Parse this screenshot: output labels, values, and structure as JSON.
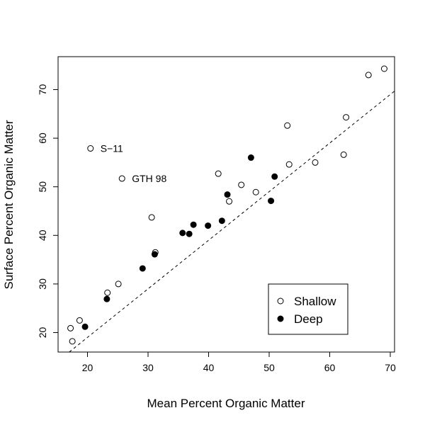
{
  "chart_data": {
    "type": "scatter",
    "xlabel": "Mean Percent Organic Matter",
    "ylabel": "Surface Percent Organic Matter",
    "xlim": [
      15,
      71
    ],
    "ylim": [
      16,
      77
    ],
    "x_ticks": [
      20,
      30,
      40,
      50,
      60,
      70
    ],
    "y_ticks": [
      20,
      30,
      40,
      50,
      60,
      70
    ],
    "legend_position": "bottom-right",
    "reference_line": {
      "style": "dashed",
      "intercept": -1,
      "slope": 1
    },
    "series": [
      {
        "name": "Shallow",
        "marker": "open-circle",
        "points": [
          [
            17.2,
            20.9
          ],
          [
            17.5,
            18.2
          ],
          [
            18.7,
            22.5
          ],
          [
            20.5,
            57.9
          ],
          [
            23.3,
            28.2
          ],
          [
            25.1,
            30.0
          ],
          [
            25.7,
            51.7
          ],
          [
            30.6,
            43.7
          ],
          [
            31.2,
            36.5
          ],
          [
            41.6,
            52.7
          ],
          [
            43.4,
            47.0
          ],
          [
            45.4,
            50.4
          ],
          [
            47.8,
            48.9
          ],
          [
            53.0,
            62.6
          ],
          [
            53.3,
            54.6
          ],
          [
            57.6,
            55.0
          ],
          [
            62.3,
            56.6
          ],
          [
            62.7,
            64.3
          ],
          [
            66.4,
            73.0
          ],
          [
            69.0,
            74.3
          ]
        ]
      },
      {
        "name": "Deep",
        "marker": "filled-circle",
        "points": [
          [
            19.6,
            21.2
          ],
          [
            23.2,
            26.9
          ],
          [
            29.1,
            33.2
          ],
          [
            31.1,
            36.1
          ],
          [
            35.7,
            40.5
          ],
          [
            36.8,
            40.3
          ],
          [
            37.5,
            42.2
          ],
          [
            39.9,
            42.0
          ],
          [
            42.2,
            43.0
          ],
          [
            43.1,
            48.4
          ],
          [
            47.0,
            56.0
          ],
          [
            50.3,
            47.1
          ],
          [
            50.9,
            52.1
          ]
        ]
      }
    ],
    "annotations": [
      {
        "text": "S−11",
        "x": 20.5,
        "y": 57.9
      },
      {
        "text": "GTH 98",
        "x": 25.7,
        "y": 51.7
      }
    ]
  }
}
